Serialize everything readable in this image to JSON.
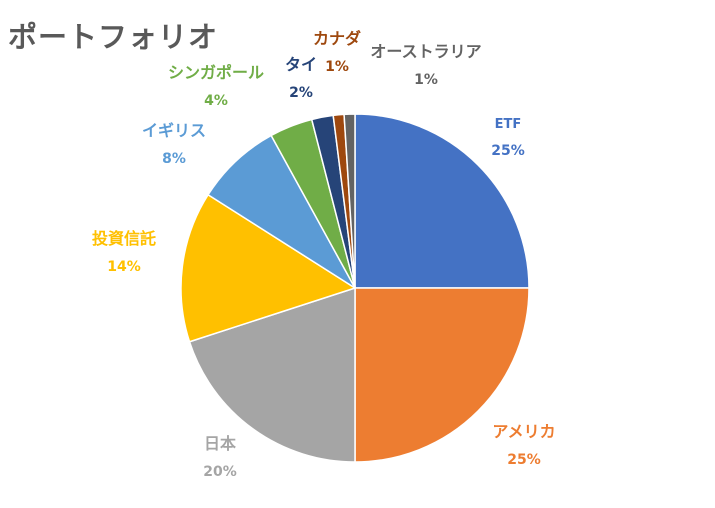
{
  "chart_data": {
    "type": "pie",
    "title": "ポートフォリオ",
    "slices": [
      {
        "label": "ETF",
        "value": 25,
        "value_label": "25%",
        "color": "#4472C4"
      },
      {
        "label": "アメリカ",
        "value": 25,
        "value_label": "25%",
        "color": "#ED7D31"
      },
      {
        "label": "日本",
        "value": 20,
        "value_label": "20%",
        "color": "#A5A5A5"
      },
      {
        "label": "投資信託",
        "value": 14,
        "value_label": "14%",
        "color": "#FFC000"
      },
      {
        "label": "イギリス",
        "value": 8,
        "value_label": "8%",
        "color": "#5B9BD5"
      },
      {
        "label": "シンガポール",
        "value": 4,
        "value_label": "4%",
        "color": "#70AD47"
      },
      {
        "label": "タイ",
        "value": 2,
        "value_label": "2%",
        "color": "#264478"
      },
      {
        "label": "カナダ",
        "value": 1,
        "value_label": "1%",
        "color": "#9E480E"
      },
      {
        "label": "オーストラリア",
        "value": 1,
        "value_label": "1%",
        "color": "#636363"
      }
    ],
    "start_angle_deg": 0,
    "direction": "clockwise",
    "legend": "none",
    "data_labels": "category and percent, outside"
  }
}
